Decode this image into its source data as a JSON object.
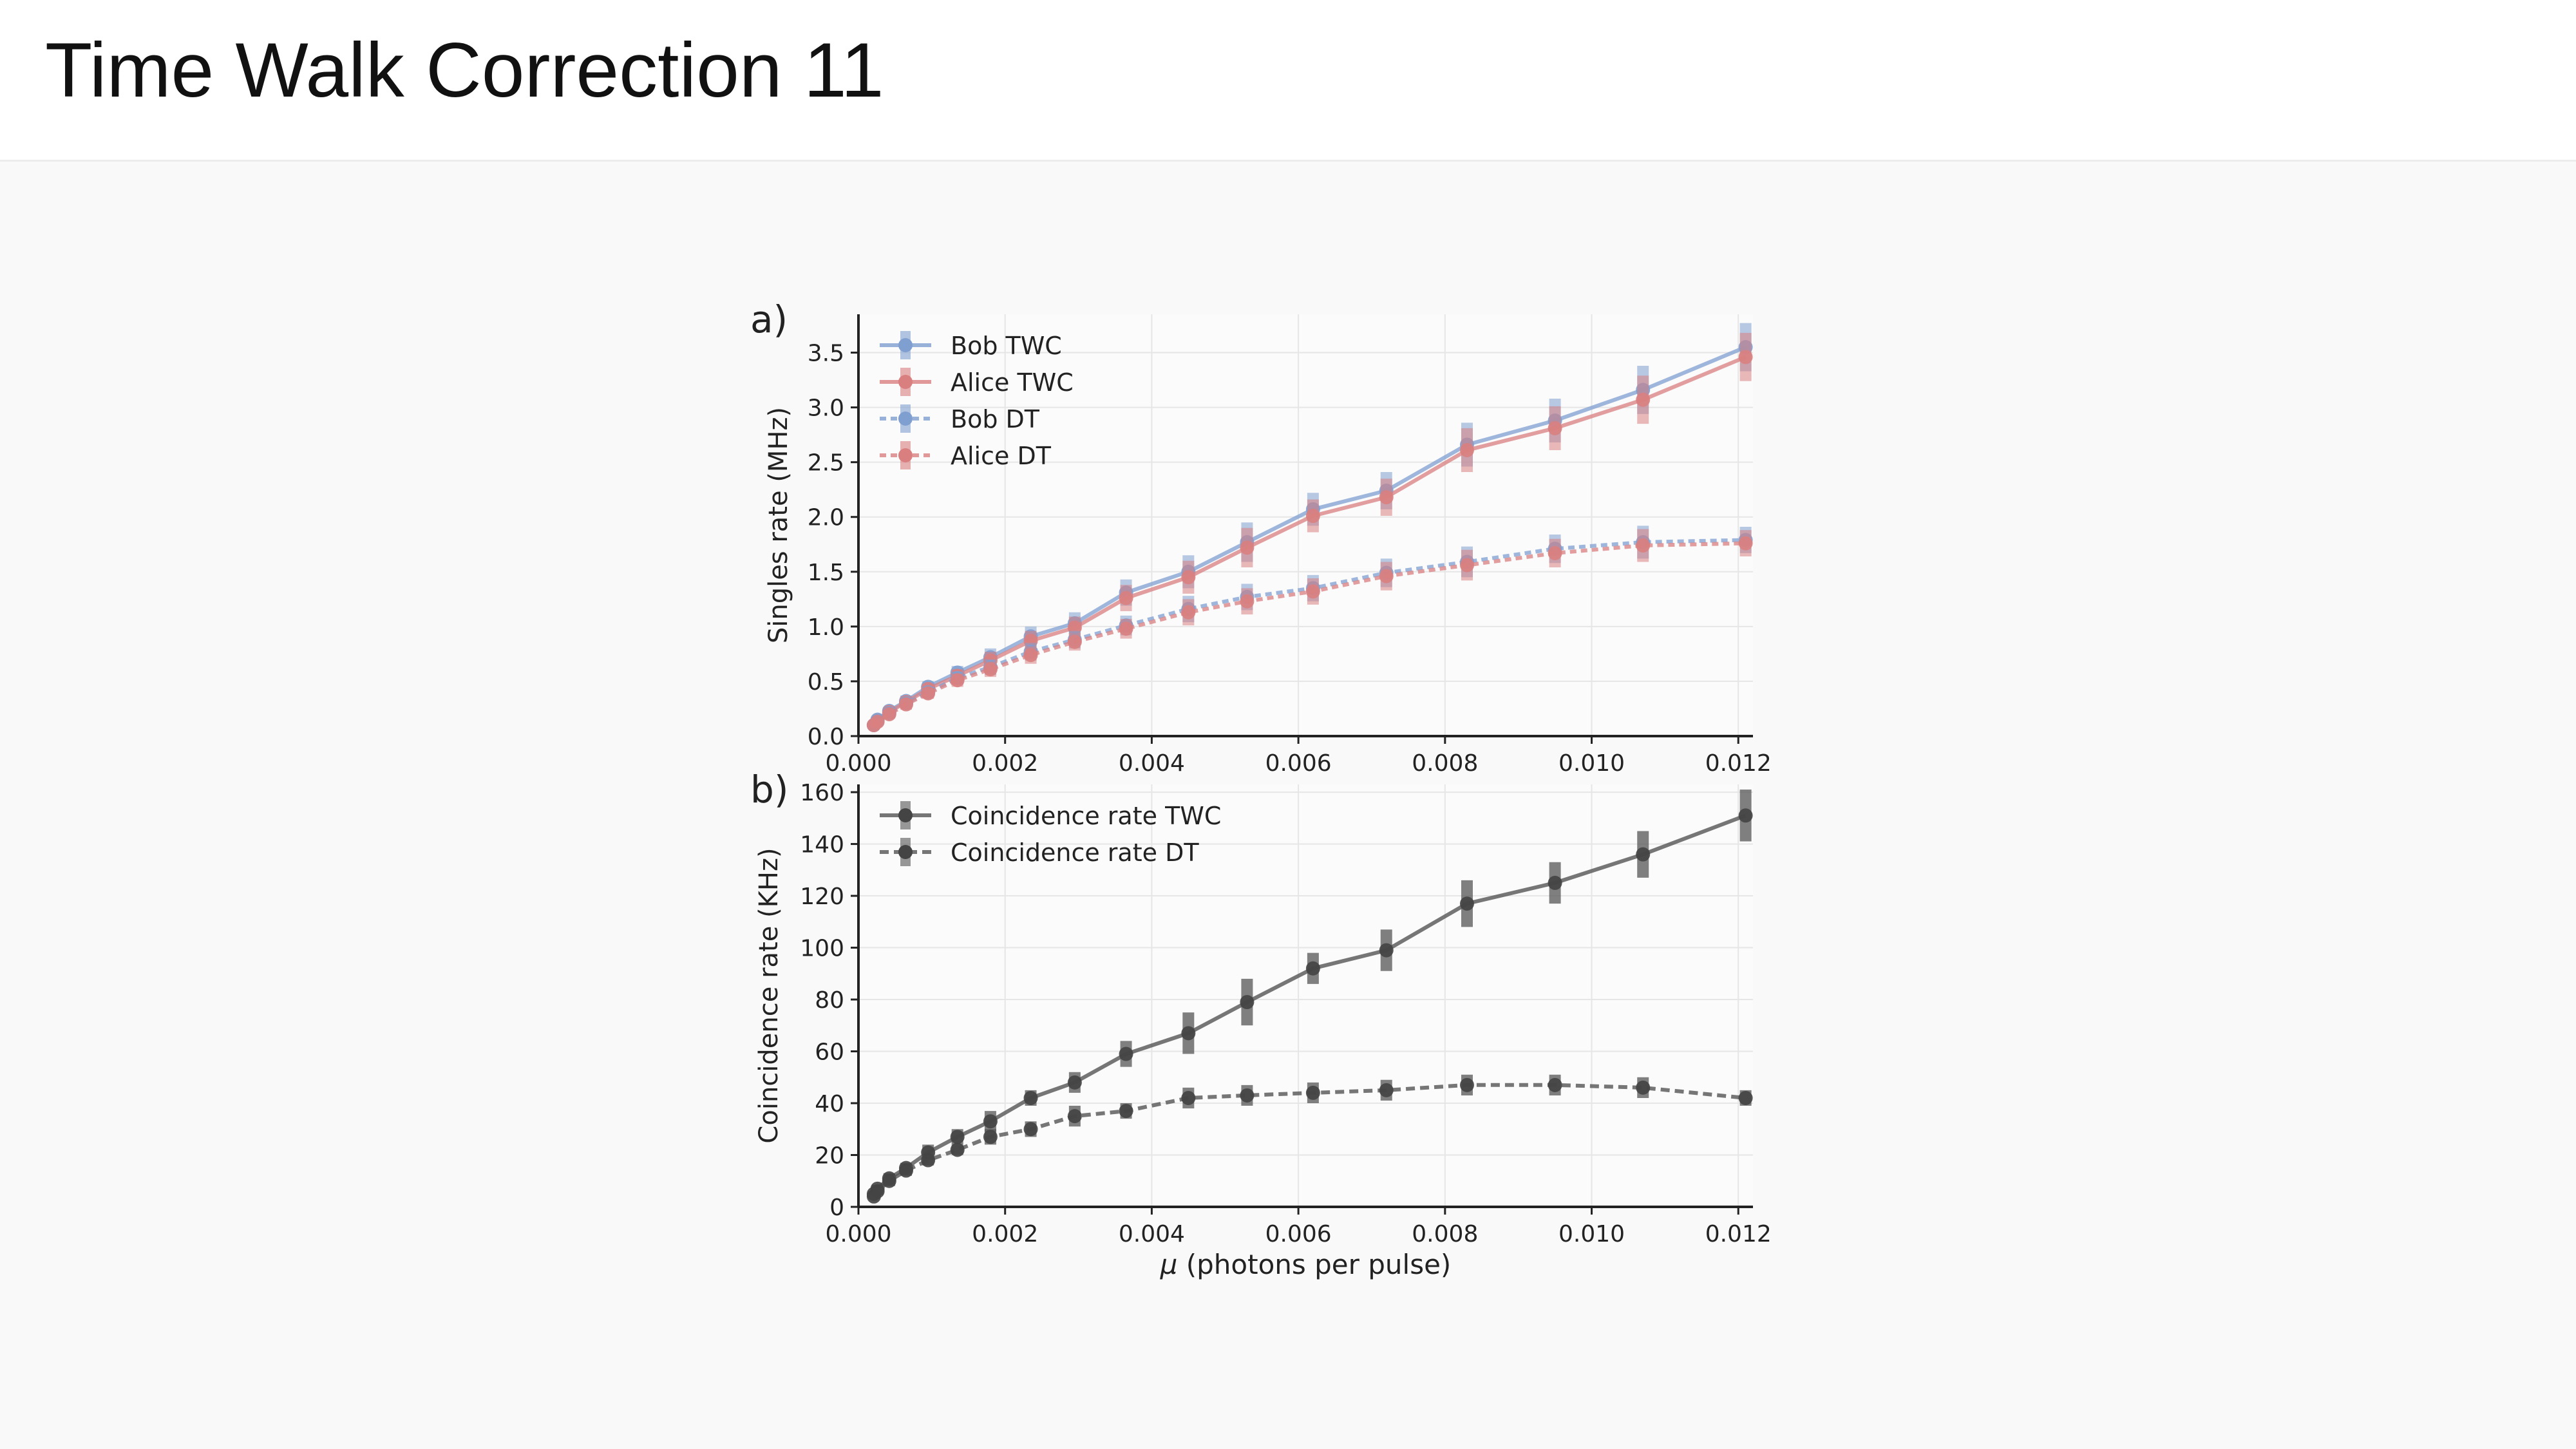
{
  "page": {
    "title": "Time Walk Correction 11"
  },
  "colors": {
    "bob": "#7f9fd0",
    "alice": "#d97f80",
    "coinc": "#555555"
  },
  "chart_data": [
    {
      "type": "line",
      "panel_label": "a)",
      "ylabel": "Singles rate (MHz)",
      "xlabel": "",
      "xlim": [
        0,
        0.0122
      ],
      "ylim": [
        0,
        3.85
      ],
      "xticks": [
        0.0,
        0.002,
        0.004,
        0.006,
        0.008,
        0.01,
        0.012
      ],
      "xtick_labels": [
        "0.000",
        "0.002",
        "0.004",
        "0.006",
        "0.008",
        "0.010",
        "0.012"
      ],
      "yticks": [
        0.0,
        0.5,
        1.0,
        1.5,
        2.0,
        2.5,
        3.0,
        3.5
      ],
      "ytick_labels": [
        "0.0",
        "0.5",
        "1.0",
        "1.5",
        "2.0",
        "2.5",
        "3.0",
        "3.5"
      ],
      "grid": true,
      "legend": "upper-left",
      "x": [
        0.00021,
        0.00026,
        0.00042,
        0.00065,
        0.00095,
        0.00135,
        0.0018,
        0.00235,
        0.00295,
        0.00365,
        0.0045,
        0.0053,
        0.0062,
        0.0072,
        0.0083,
        0.0095,
        0.0107,
        0.0121
      ],
      "series": [
        {
          "name": "Bob TWC",
          "style": "solid",
          "color": "#7f9fd0",
          "values": [
            0.1,
            0.15,
            0.23,
            0.32,
            0.45,
            0.58,
            0.72,
            0.91,
            1.03,
            1.31,
            1.5,
            1.77,
            2.07,
            2.24,
            2.66,
            2.88,
            3.16,
            3.55
          ],
          "errors": [
            0.03,
            0.03,
            0.04,
            0.05,
            0.05,
            0.06,
            0.08,
            0.09,
            0.1,
            0.12,
            0.15,
            0.18,
            0.15,
            0.17,
            0.2,
            0.2,
            0.22,
            0.22
          ]
        },
        {
          "name": "Alice TWC",
          "style": "solid",
          "color": "#d97f80",
          "values": [
            0.1,
            0.14,
            0.22,
            0.31,
            0.43,
            0.55,
            0.69,
            0.87,
            0.99,
            1.26,
            1.45,
            1.72,
            2.01,
            2.18,
            2.61,
            2.81,
            3.07,
            3.46
          ],
          "errors": [
            0.03,
            0.03,
            0.04,
            0.05,
            0.05,
            0.06,
            0.08,
            0.09,
            0.1,
            0.12,
            0.15,
            0.18,
            0.15,
            0.17,
            0.2,
            0.2,
            0.22,
            0.22
          ]
        },
        {
          "name": "Bob DT",
          "style": "dotted",
          "color": "#7f9fd0",
          "values": [
            0.1,
            0.14,
            0.21,
            0.3,
            0.4,
            0.53,
            0.63,
            0.77,
            0.88,
            1.01,
            1.16,
            1.27,
            1.35,
            1.49,
            1.59,
            1.71,
            1.77,
            1.79
          ],
          "errors": [
            0.03,
            0.03,
            0.04,
            0.05,
            0.05,
            0.06,
            0.07,
            0.08,
            0.08,
            0.09,
            0.12,
            0.12,
            0.12,
            0.13,
            0.14,
            0.13,
            0.15,
            0.12
          ]
        },
        {
          "name": "Alice DT",
          "style": "dotted",
          "color": "#d97f80",
          "values": [
            0.1,
            0.13,
            0.2,
            0.29,
            0.39,
            0.51,
            0.61,
            0.74,
            0.86,
            0.98,
            1.13,
            1.23,
            1.32,
            1.46,
            1.56,
            1.67,
            1.74,
            1.76
          ],
          "errors": [
            0.03,
            0.03,
            0.04,
            0.05,
            0.05,
            0.06,
            0.07,
            0.08,
            0.08,
            0.09,
            0.12,
            0.12,
            0.12,
            0.13,
            0.14,
            0.13,
            0.15,
            0.12
          ]
        }
      ]
    },
    {
      "type": "line",
      "panel_label": "b)",
      "ylabel": "Coincidence rate (KHz)",
      "xlabel_symbol": "μ",
      "xlabel_rest": " (photons per pulse)",
      "xlim": [
        0,
        0.0122
      ],
      "ylim": [
        0,
        163
      ],
      "xticks": [
        0.0,
        0.002,
        0.004,
        0.006,
        0.008,
        0.01,
        0.012
      ],
      "xtick_labels": [
        "0.000",
        "0.002",
        "0.004",
        "0.006",
        "0.008",
        "0.010",
        "0.012"
      ],
      "yticks": [
        0,
        20,
        40,
        60,
        80,
        100,
        120,
        140,
        160
      ],
      "ytick_labels": [
        "0",
        "20",
        "40",
        "60",
        "80",
        "100",
        "120",
        "140",
        "160"
      ],
      "grid": true,
      "legend": "upper-left",
      "x": [
        0.00021,
        0.00026,
        0.00042,
        0.00065,
        0.00095,
        0.00135,
        0.0018,
        0.00235,
        0.00295,
        0.00365,
        0.0045,
        0.0053,
        0.0062,
        0.0072,
        0.0083,
        0.0095,
        0.0107,
        0.0121
      ],
      "series": [
        {
          "name": "Coincidence rate TWC",
          "style": "solid",
          "color": "#555555",
          "values": [
            5,
            7,
            11,
            15,
            21,
            27,
            33,
            42,
            48,
            59,
            67,
            79,
            92,
            99,
            117,
            125,
            136,
            151
          ],
          "errors": [
            1,
            1.5,
            2,
            2,
            3,
            3,
            4,
            3,
            4,
            5,
            8,
            9,
            6,
            8,
            9,
            8,
            9,
            10
          ]
        },
        {
          "name": "Coincidence rate DT",
          "style": "dashed",
          "color": "#555555",
          "values": [
            4,
            6,
            10,
            14,
            18,
            22,
            27,
            30,
            35,
            37,
            42,
            43,
            44,
            45,
            47,
            47,
            46,
            42
          ],
          "errors": [
            1,
            1.5,
            2,
            2,
            2,
            2,
            3,
            3,
            4,
            3,
            4,
            4,
            4,
            4,
            4,
            4,
            4,
            3
          ]
        }
      ]
    }
  ]
}
